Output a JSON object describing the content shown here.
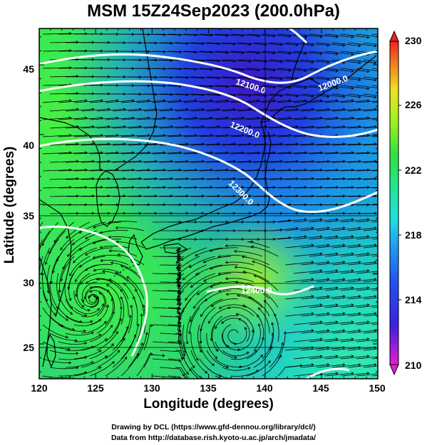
{
  "title": "MSM 15Z24Sep2023 (200.0hPa)",
  "axes": {
    "xlabel": "Longitude (degrees)",
    "ylabel": "Latitude  (degrees)",
    "x_ticks": [
      "120",
      "125",
      "130",
      "135",
      "140",
      "145",
      "150"
    ],
    "y_ticks": [
      "25",
      "30",
      "35",
      "40",
      "45"
    ],
    "xlim": [
      120,
      150
    ],
    "ylim": [
      22.5,
      47.6
    ]
  },
  "colorbar": {
    "labels": [
      "230",
      "226",
      "222",
      "218",
      "214",
      "210"
    ],
    "range": [
      210,
      230
    ]
  },
  "contours": {
    "labels": [
      "12100.0",
      "12200.0",
      "12300.0",
      "12400.0",
      "12000.0"
    ],
    "color": "#ffffff"
  },
  "credits": {
    "line1": "Drawing by DCL (https://www.gfd-dennou.org/library/dcl/)",
    "line2": "Data from http://database.rish.kyoto-u.ac.jp/arch/jmadata/"
  },
  "colors": {
    "frame": "#000000",
    "streamline": "#000000",
    "coast": "#000000"
  }
}
